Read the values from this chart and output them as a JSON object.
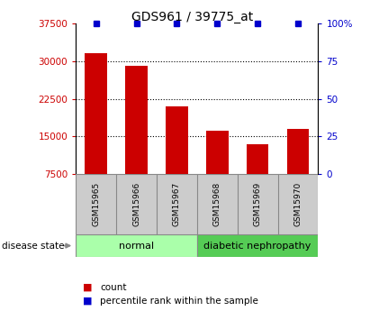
{
  "title": "GDS961 / 39775_at",
  "categories": [
    "GSM15965",
    "GSM15966",
    "GSM15967",
    "GSM15968",
    "GSM15969",
    "GSM15970"
  ],
  "bar_values": [
    31500,
    29000,
    21000,
    16200,
    13500,
    16500
  ],
  "percentile_values": [
    100,
    100,
    100,
    100,
    100,
    100
  ],
  "bar_color": "#cc0000",
  "percentile_color": "#0000cc",
  "ylim_left": [
    7500,
    37500
  ],
  "ylim_right": [
    0,
    100
  ],
  "yticks_left": [
    7500,
    15000,
    22500,
    30000,
    37500
  ],
  "yticks_right": [
    0,
    25,
    50,
    75,
    100
  ],
  "ytick_labels_right": [
    "0",
    "25",
    "50",
    "75",
    "100%"
  ],
  "normal_color": "#aaffaa",
  "diabetic_color": "#55cc55",
  "sample_box_color": "#cccccc",
  "disease_state_label": "disease state",
  "normal_label": "normal",
  "diabetic_label": "diabetic nephropathy",
  "legend_count_label": "count",
  "legend_percentile_label": "percentile rank within the sample",
  "background_color": "#ffffff",
  "bar_width": 0.55
}
